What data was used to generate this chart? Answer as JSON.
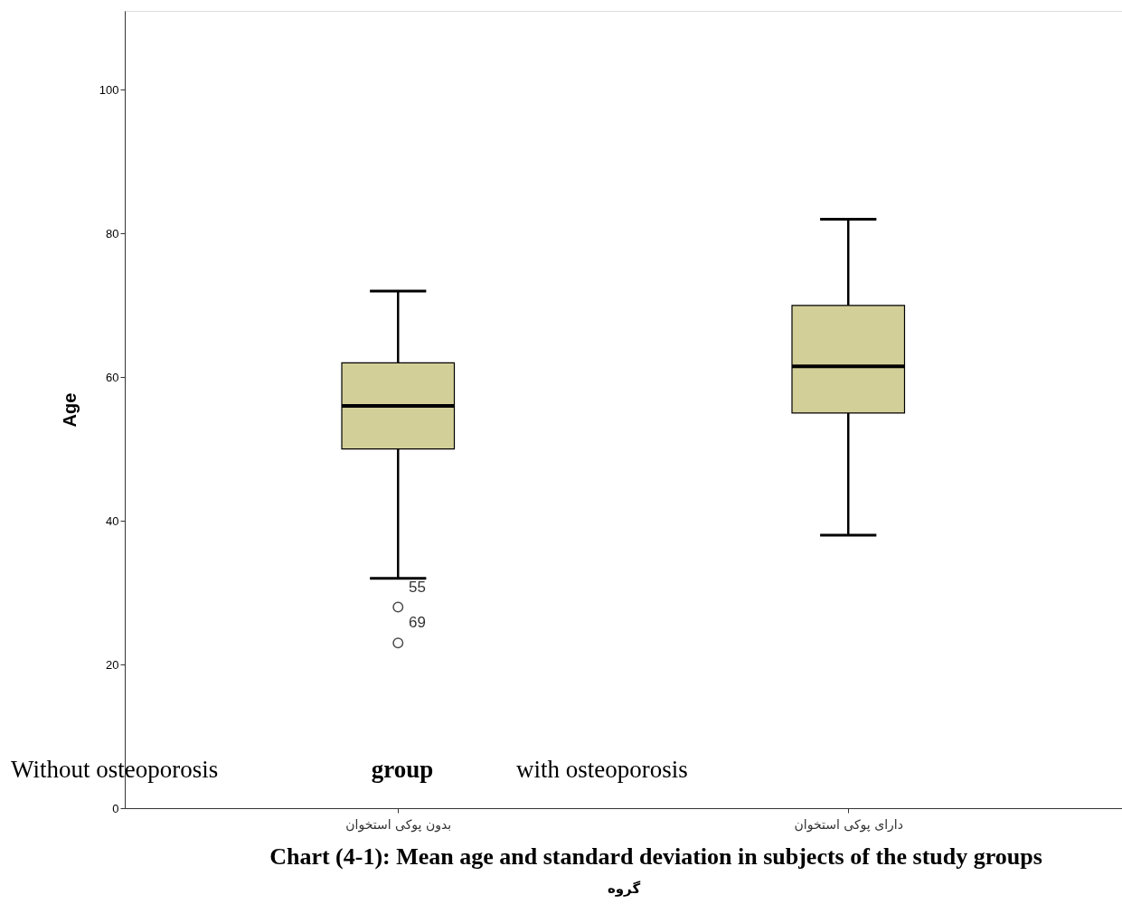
{
  "chart_data": {
    "type": "box",
    "ylabel": "Age",
    "xlabel": "گروه",
    "categories": [
      "بدون پوکی استخوان",
      "دارای پوکی استخوان"
    ],
    "boxes": [
      {
        "low": 32,
        "q1": 50,
        "median": 56,
        "q3": 62,
        "high": 72,
        "outliers": [
          28,
          23
        ]
      },
      {
        "low": 38,
        "q1": 55,
        "median": 61.5,
        "q3": 70,
        "high": 82
      }
    ],
    "color": "#d3cf98",
    "ylim": [
      0,
      111
    ],
    "yticks": [
      0,
      20,
      40,
      60,
      80,
      100
    ],
    "grid": false,
    "annotations": [
      "Without osteoporosis",
      "group",
      "with osteoporosis",
      "Chart (4-1): Mean age and standard deviation in subjects of the study groups",
      "55",
      "69"
    ]
  }
}
